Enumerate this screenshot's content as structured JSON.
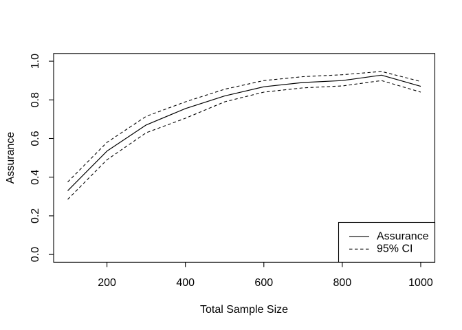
{
  "chart_data": {
    "type": "line",
    "title": "",
    "xlabel": "Total Sample Size",
    "ylabel": "Assurance",
    "x": [
      100,
      200,
      300,
      400,
      500,
      600,
      700,
      800,
      900,
      1000
    ],
    "series": [
      {
        "name": "Assurance",
        "style": "solid",
        "values": [
          0.33,
          0.535,
          0.67,
          0.755,
          0.82,
          0.868,
          0.89,
          0.9,
          0.928,
          0.87
        ]
      },
      {
        "name": "95% CI upper",
        "style": "dashed",
        "values": [
          0.375,
          0.58,
          0.715,
          0.79,
          0.855,
          0.9,
          0.92,
          0.93,
          0.947,
          0.895
        ]
      },
      {
        "name": "95% CI lower",
        "style": "dashed",
        "values": [
          0.285,
          0.49,
          0.63,
          0.705,
          0.79,
          0.84,
          0.862,
          0.872,
          0.9,
          0.84
        ]
      }
    ],
    "x_ticks": [
      200,
      400,
      600,
      800,
      1000
    ],
    "y_tick_labels": [
      "0.0",
      "0.2",
      "0.4",
      "0.6",
      "0.8",
      "1.0"
    ],
    "xlim": [
      64,
      1036
    ],
    "ylim": [
      -0.04,
      1.04
    ],
    "grid": false,
    "legend": {
      "position": "bottomright",
      "entries": [
        {
          "label": "Assurance",
          "style": "solid"
        },
        {
          "label": "95% CI",
          "style": "dashed"
        }
      ]
    },
    "colors": {
      "line": "#000000",
      "background": "#ffffff"
    }
  }
}
